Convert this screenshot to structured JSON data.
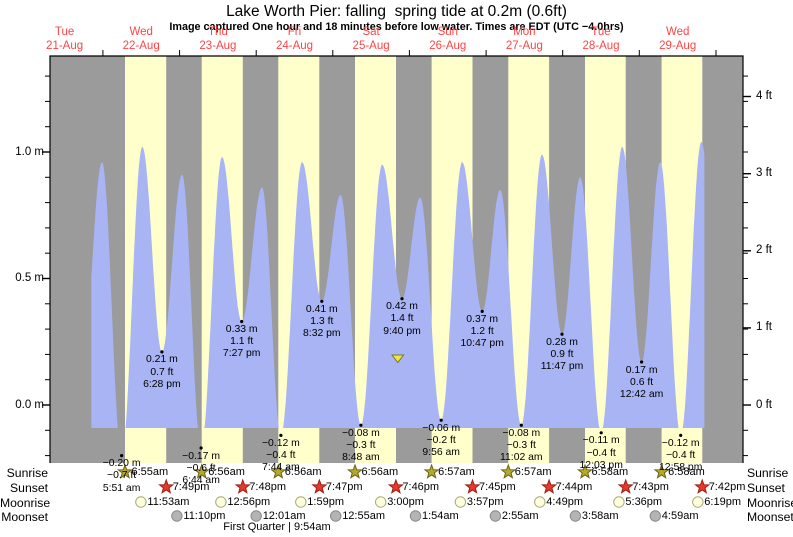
{
  "title": "Lake Worth Pier: falling  spring tide at 0.2m (0.6ft)",
  "subtitle": "Image captured One hour and 18 minutes before low water. Times are EDT (UTC −4.0hrs)",
  "colors": {
    "night_band": "#9b9b9b",
    "day_band": "#ffffcc",
    "tide_fill": "#a8b4f4",
    "date_label": "#ff4444",
    "axis": "#000000",
    "sunrise_star_fill": "#b5aa2f",
    "sunrise_star_stroke": "#6b6414",
    "sunset_star_fill": "#e8392a",
    "sunset_star_stroke": "#9c1f12",
    "moonrise_fill": "#ffffdd",
    "moonrise_stroke": "#a8a878",
    "moonset_fill": "#b4b4b4",
    "moonset_stroke": "#888888",
    "marker_fill": "#f0e63c",
    "marker_stroke": "#77772e",
    "dot": "#000000"
  },
  "days": [
    {
      "name": "Tue",
      "date": "21-Aug"
    },
    {
      "name": "Wed",
      "date": "22-Aug"
    },
    {
      "name": "Thu",
      "date": "23-Aug"
    },
    {
      "name": "Fri",
      "date": "24-Aug"
    },
    {
      "name": "Sat",
      "date": "25-Aug"
    },
    {
      "name": "Sun",
      "date": "26-Aug"
    },
    {
      "name": "Mon",
      "date": "27-Aug"
    },
    {
      "name": "Tue",
      "date": "28-Aug"
    },
    {
      "name": "Wed",
      "date": "29-Aug"
    }
  ],
  "y_axis": {
    "left_unit": "m",
    "left_labels": [
      {
        "text": "1.0 m",
        "value": 1.0
      },
      {
        "text": "0.5 m",
        "value": 0.5
      },
      {
        "text": "0.0 m",
        "value": 0.0
      }
    ],
    "right_unit": "ft",
    "right_labels": [
      {
        "text": "4 ft",
        "value_ft": 4
      },
      {
        "text": "3 ft",
        "value_ft": 3
      },
      {
        "text": "2 ft",
        "value_ft": 2
      },
      {
        "text": "1 ft",
        "value_ft": 1
      },
      {
        "text": "0 ft",
        "value_ft": 0
      }
    ]
  },
  "sun_moon": {
    "left_labels": [
      "Sunrise",
      "Sunset",
      "Moonrise",
      "Moonset"
    ],
    "right_labels": [
      "Sunrise",
      "Sunset",
      "Moonrise",
      "Moonset"
    ],
    "sunrise": [
      {
        "date": "22-Aug",
        "time": "6:55am"
      },
      {
        "date": "23-Aug",
        "time": "6:56am"
      },
      {
        "date": "24-Aug",
        "time": "6:56am"
      },
      {
        "date": "25-Aug",
        "time": "6:56am"
      },
      {
        "date": "26-Aug",
        "time": "6:57am"
      },
      {
        "date": "27-Aug",
        "time": "6:57am"
      },
      {
        "date": "28-Aug",
        "time": "6:58am"
      },
      {
        "date": "29-Aug",
        "time": "6:58am"
      }
    ],
    "sunset": [
      {
        "date": "22-Aug",
        "time": "7:49pm"
      },
      {
        "date": "23-Aug",
        "time": "7:48pm"
      },
      {
        "date": "24-Aug",
        "time": "7:47pm"
      },
      {
        "date": "25-Aug",
        "time": "7:46pm"
      },
      {
        "date": "26-Aug",
        "time": "7:45pm"
      },
      {
        "date": "27-Aug",
        "time": "7:44pm"
      },
      {
        "date": "28-Aug",
        "time": "7:43pm"
      },
      {
        "date": "29-Aug",
        "time": "7:42pm"
      }
    ],
    "moonrise": [
      {
        "date": "22-Aug",
        "time": "11:53am"
      },
      {
        "date": "23-Aug",
        "time": "12:56pm"
      },
      {
        "date": "24-Aug",
        "time": "1:59pm"
      },
      {
        "date": "25-Aug",
        "time": "3:00pm"
      },
      {
        "date": "26-Aug",
        "time": "3:57pm"
      },
      {
        "date": "27-Aug",
        "time": "4:49pm"
      },
      {
        "date": "28-Aug",
        "time": "5:36pm"
      },
      {
        "date": "29-Aug",
        "time": "6:19pm"
      }
    ],
    "moonset": [
      {
        "date": "22-Aug",
        "time": "11:10pm"
      },
      {
        "date": "24-Aug",
        "time": "12:01am"
      },
      {
        "date": "25-Aug",
        "time": "12:55am"
      },
      {
        "date": "26-Aug",
        "time": "1:54am"
      },
      {
        "date": "27-Aug",
        "time": "2:55am"
      },
      {
        "date": "28-Aug",
        "time": "3:58am"
      },
      {
        "date": "29-Aug",
        "time": "4:59am"
      }
    ],
    "moon_phase": "First Quarter | 9:54am"
  },
  "chart_data": {
    "type": "area",
    "title": "Lake Worth Pier: falling  spring tide at 0.2m (0.6ft)",
    "x_range": [
      "21-Aug",
      "29-Aug"
    ],
    "y_left_unit": "m",
    "y_right_unit": "ft",
    "y_range_m": [
      -0.23,
      1.38
    ],
    "current_marker": {
      "date": "25-Aug",
      "time": "8:22 pm",
      "height_m": 0.2
    },
    "curve_window": {
      "start": {
        "date": "21-Aug",
        "time": "8:22 pm"
      },
      "end": {
        "date": "29-Aug",
        "time": "8:22 pm"
      }
    },
    "tide_events": [
      {
        "date": "21-Aug",
        "time": "5:30 pm",
        "height_m": 0.15,
        "kind": "low",
        "annotated": false,
        "estimated": true
      },
      {
        "date": "21-Aug",
        "time": "11:43 pm",
        "height_m": 0.96,
        "kind": "high",
        "annotated": false,
        "estimated": true
      },
      {
        "date": "22-Aug",
        "time": "5:51 am",
        "height_m": -0.2,
        "kind": "low",
        "annotated": true,
        "label_m": "−0.20 m",
        "label_ft": "−0.7 ft",
        "label_time": "5:51 am"
      },
      {
        "date": "22-Aug",
        "time": "12:20 pm",
        "height_m": 1.02,
        "kind": "high",
        "annotated": false,
        "estimated": true
      },
      {
        "date": "22-Aug",
        "time": "6:28 pm",
        "height_m": 0.21,
        "kind": "low",
        "annotated": true,
        "label_m": "0.21 m",
        "label_ft": "0.7 ft",
        "label_time": "6:28 pm"
      },
      {
        "date": "23-Aug",
        "time": "12:48 am",
        "height_m": 0.91,
        "kind": "high",
        "annotated": false,
        "estimated": true
      },
      {
        "date": "23-Aug",
        "time": "6:44 am",
        "height_m": -0.17,
        "kind": "low",
        "annotated": true,
        "label_m": "−0.17 m",
        "label_ft": "−0.6 ft",
        "label_time": "6:44 am"
      },
      {
        "date": "23-Aug",
        "time": "1:18 pm",
        "height_m": 0.98,
        "kind": "high",
        "annotated": false,
        "estimated": true
      },
      {
        "date": "23-Aug",
        "time": "7:27 pm",
        "height_m": 0.33,
        "kind": "low",
        "annotated": true,
        "label_m": "0.33 m",
        "label_ft": "1.1 ft",
        "label_time": "7:27 pm"
      },
      {
        "date": "24-Aug",
        "time": "1:50 am",
        "height_m": 0.86,
        "kind": "high",
        "annotated": false,
        "estimated": true
      },
      {
        "date": "24-Aug",
        "time": "7:44 am",
        "height_m": -0.12,
        "kind": "low",
        "annotated": true,
        "label_m": "−0.12 m",
        "label_ft": "−0.4 ft",
        "label_time": "7:44 am"
      },
      {
        "date": "24-Aug",
        "time": "2:22 pm",
        "height_m": 0.96,
        "kind": "high",
        "annotated": false,
        "estimated": true
      },
      {
        "date": "24-Aug",
        "time": "8:32 pm",
        "height_m": 0.41,
        "kind": "low",
        "annotated": true,
        "label_m": "0.41 m",
        "label_ft": "1.3 ft",
        "label_time": "8:32 pm"
      },
      {
        "date": "25-Aug",
        "time": "2:25 am",
        "height_m": 0.83,
        "kind": "high",
        "annotated": false,
        "estimated": true
      },
      {
        "date": "25-Aug",
        "time": "8:48 am",
        "height_m": -0.08,
        "kind": "low",
        "annotated": true,
        "label_m": "−0.08 m",
        "label_ft": "−0.3 ft",
        "label_time": "8:48 am"
      },
      {
        "date": "25-Aug",
        "time": "3:27 pm",
        "height_m": 0.95,
        "kind": "high",
        "annotated": false,
        "estimated": true
      },
      {
        "date": "25-Aug",
        "time": "9:40 pm",
        "height_m": 0.42,
        "kind": "low",
        "annotated": true,
        "label_m": "0.42 m",
        "label_ft": "1.4 ft",
        "label_time": "9:40 pm"
      },
      {
        "date": "26-Aug",
        "time": "3:21 am",
        "height_m": 0.82,
        "kind": "high",
        "annotated": false,
        "estimated": true
      },
      {
        "date": "26-Aug",
        "time": "9:56 am",
        "height_m": -0.06,
        "kind": "low",
        "annotated": true,
        "label_m": "−0.06 m",
        "label_ft": "−0.2 ft",
        "label_time": "9:56 am"
      },
      {
        "date": "26-Aug",
        "time": "4:30 pm",
        "height_m": 0.96,
        "kind": "high",
        "annotated": false,
        "estimated": true
      },
      {
        "date": "26-Aug",
        "time": "10:47 pm",
        "height_m": 0.37,
        "kind": "low",
        "annotated": true,
        "label_m": "0.37 m",
        "label_ft": "1.2 ft",
        "label_time": "10:47 pm"
      },
      {
        "date": "27-Aug",
        "time": "4:25 am",
        "height_m": 0.85,
        "kind": "high",
        "annotated": false,
        "estimated": true
      },
      {
        "date": "27-Aug",
        "time": "11:02 am",
        "height_m": -0.08,
        "kind": "low",
        "annotated": true,
        "label_m": "−0.08 m",
        "label_ft": "−0.3 ft",
        "label_time": "11:02 am"
      },
      {
        "date": "27-Aug",
        "time": "5:30 pm",
        "height_m": 0.99,
        "kind": "high",
        "annotated": false,
        "estimated": true
      },
      {
        "date": "27-Aug",
        "time": "11:47 pm",
        "height_m": 0.28,
        "kind": "low",
        "annotated": true,
        "label_m": "0.28 m",
        "label_ft": "0.9 ft",
        "label_time": "11:47 pm"
      },
      {
        "date": "28-Aug",
        "time": "5:29 am",
        "height_m": 0.9,
        "kind": "high",
        "annotated": false,
        "estimated": true
      },
      {
        "date": "28-Aug",
        "time": "12:03 pm",
        "height_m": -0.11,
        "kind": "low",
        "annotated": true,
        "label_m": "−0.11 m",
        "label_ft": "−0.4 ft",
        "label_time": "12:03 pm"
      },
      {
        "date": "28-Aug",
        "time": "6:38 pm",
        "height_m": 1.02,
        "kind": "high",
        "annotated": false,
        "estimated": true
      },
      {
        "date": "29-Aug",
        "time": "12:42 am",
        "height_m": 0.17,
        "kind": "low",
        "annotated": true,
        "label_m": "0.17 m",
        "label_ft": "0.6 ft",
        "label_time": "12:42 am"
      },
      {
        "date": "29-Aug",
        "time": "6:33 am",
        "height_m": 0.96,
        "kind": "high",
        "annotated": false,
        "estimated": true
      },
      {
        "date": "29-Aug",
        "time": "12:58 pm",
        "height_m": -0.12,
        "kind": "low",
        "annotated": true,
        "label_m": "−0.12 m",
        "label_ft": "−0.4 ft",
        "label_time": "12:58 pm"
      },
      {
        "date": "29-Aug",
        "time": "7:25 pm",
        "height_m": 1.04,
        "kind": "high",
        "annotated": false,
        "estimated": true
      },
      {
        "date": "30-Aug",
        "time": "1:40 am",
        "height_m": 0.12,
        "kind": "low",
        "annotated": false,
        "estimated": true
      }
    ]
  }
}
